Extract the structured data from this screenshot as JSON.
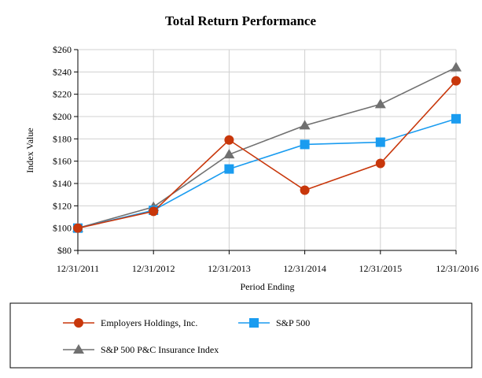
{
  "chart_data": {
    "type": "line",
    "title": "Total Return Performance",
    "xlabel": "Period Ending",
    "ylabel": "Index Value",
    "categories": [
      "12/31/2011",
      "12/31/2012",
      "12/31/2013",
      "12/31/2014",
      "12/31/2015",
      "12/31/2016"
    ],
    "ylim": [
      80,
      260
    ],
    "yticks": [
      80,
      100,
      120,
      140,
      160,
      180,
      200,
      220,
      240,
      260
    ],
    "ytick_labels": [
      "$80",
      "$100",
      "$120",
      "$140",
      "$160",
      "$180",
      "$200",
      "$220",
      "$240",
      "$260"
    ],
    "grid": true,
    "legend_position": "bottom",
    "series": [
      {
        "name": "Employers Holdings, Inc.",
        "values": [
          100,
          115,
          179,
          134,
          158,
          232
        ],
        "color": "#c8370b",
        "marker": "circle"
      },
      {
        "name": "S&P 500",
        "values": [
          100,
          116,
          153,
          175,
          177,
          198
        ],
        "color": "#1a9cf0",
        "marker": "square"
      },
      {
        "name": "S&P 500 P&C Insurance Index",
        "values": [
          100,
          119,
          166,
          192,
          211,
          244
        ],
        "color": "#707070",
        "marker": "triangle"
      }
    ]
  }
}
